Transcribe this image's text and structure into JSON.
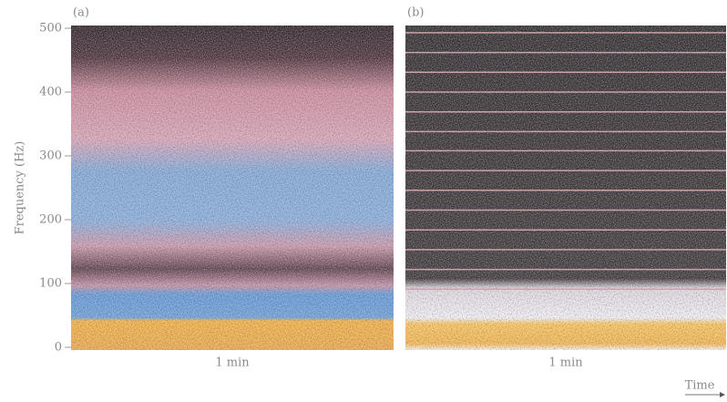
{
  "chart_data": [
    {
      "type": "spectrogram",
      "panel_label": "(a)",
      "ylabel": "Frequency (Hz)",
      "xlabel": "1 min",
      "ylim": [
        0,
        500
      ],
      "yticks": [
        0,
        100,
        200,
        300,
        400,
        500
      ]
    },
    {
      "type": "spectrogram",
      "panel_label": "(b)",
      "xlabel": "1 min",
      "ylim": [
        0,
        500
      ],
      "harmonics": [
        91,
        122,
        153,
        184,
        215,
        246,
        277,
        308,
        338,
        369,
        400,
        431,
        462,
        493
      ]
    }
  ],
  "time_label": "Time"
}
